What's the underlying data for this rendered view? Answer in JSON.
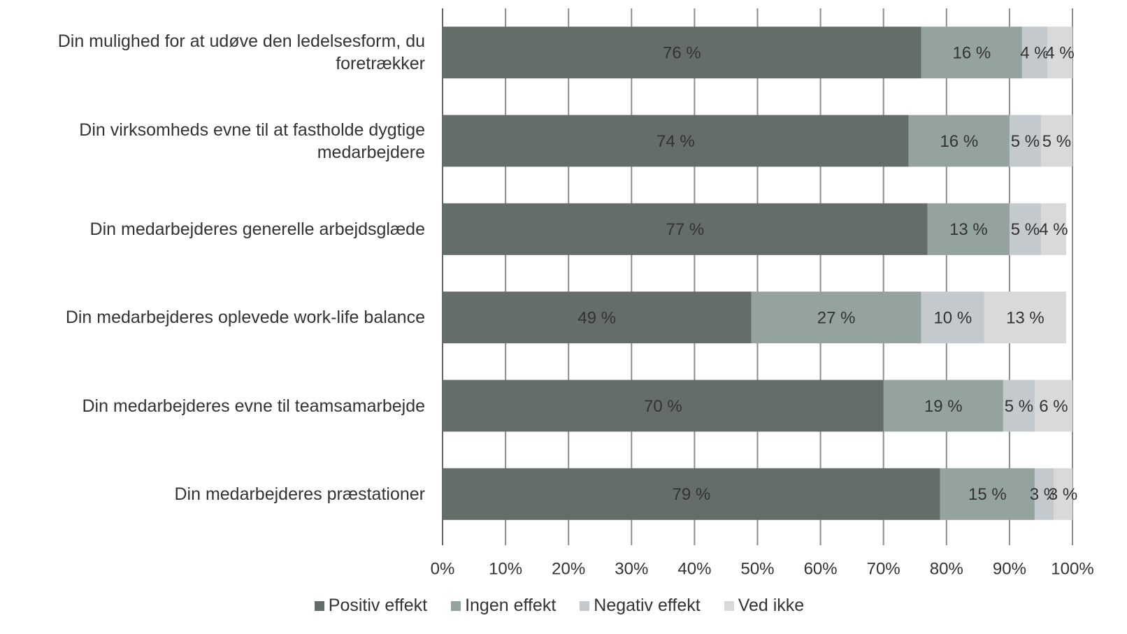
{
  "chart_data": {
    "type": "stacked-barh",
    "categories": [
      "Din mulighed for at udøve den ledelsesform, du foretrækker",
      "Din virksomheds evne til at fastholde dygtige medarbejdere",
      "Din medarbejderes generelle arbejdsglæde",
      "Din medarbejderes oplevede work-life balance",
      "Din medarbejderes evne til teamsamarbejde",
      "Din medarbejderes præstationer"
    ],
    "series": [
      {
        "name": "Positiv effekt",
        "color": "#656d69",
        "values": [
          76,
          74,
          77,
          49,
          70,
          79
        ],
        "value_labels": [
          "76 %",
          "74 %",
          "77 %",
          "49 %",
          "70 %",
          "79 %"
        ]
      },
      {
        "name": "Ingen effekt",
        "color": "#95a39f",
        "values": [
          16,
          16,
          13,
          27,
          19,
          15
        ],
        "value_labels": [
          "16 %",
          "16 %",
          "13 %",
          "27 %",
          "19 %",
          "15 %"
        ]
      },
      {
        "name": "Negativ effekt",
        "color": "#c3c9cc",
        "values": [
          4,
          5,
          5,
          10,
          5,
          3
        ],
        "value_labels": [
          "4 %",
          "5 %",
          "5 %",
          "10 %",
          "5 %",
          "3 %"
        ]
      },
      {
        "name": "Ved ikke",
        "color": "#d9d9d9",
        "values": [
          4,
          5,
          4,
          13,
          6,
          3
        ],
        "value_labels": [
          "4 %",
          "5 %",
          "4 %",
          "13 %",
          "6 %",
          "3 %"
        ]
      }
    ],
    "xlim": [
      0,
      100
    ],
    "xticks": [
      {
        "value": 0,
        "label": "0%"
      },
      {
        "value": 10,
        "label": "10%"
      },
      {
        "value": 20,
        "label": "20%"
      },
      {
        "value": 30,
        "label": "30%"
      },
      {
        "value": 40,
        "label": "40%"
      },
      {
        "value": 50,
        "label": "50%"
      },
      {
        "value": 60,
        "label": "60%"
      },
      {
        "value": 70,
        "label": "70%"
      },
      {
        "value": 80,
        "label": "80%"
      },
      {
        "value": 90,
        "label": "90%"
      },
      {
        "value": 100,
        "label": "100%"
      }
    ],
    "grid": true,
    "legend": "bottom"
  }
}
